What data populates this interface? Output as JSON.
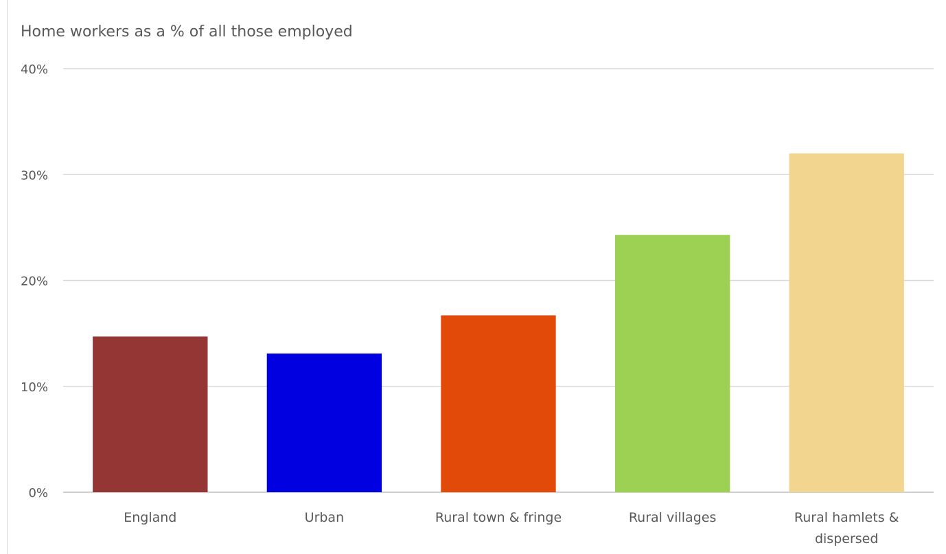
{
  "chart_data": {
    "type": "bar",
    "title": "Home workers as a % of all those employed",
    "categories": [
      "England",
      "Urban",
      "Rural town & fringe",
      "Rural villages",
      "Rural hamlets & dispersed"
    ],
    "category_lines": [
      [
        "England"
      ],
      [
        "Urban"
      ],
      [
        "Rural town & fringe"
      ],
      [
        "Rural villages"
      ],
      [
        "Rural hamlets &",
        "dispersed"
      ]
    ],
    "values": [
      14.7,
      13.1,
      16.7,
      24.3,
      32.0
    ],
    "colors": [
      "#943634",
      "#0000e0",
      "#e24a0a",
      "#9dd153",
      "#f2d690"
    ],
    "ylim": [
      0,
      40
    ],
    "yticks": [
      0,
      10,
      20,
      30,
      40
    ],
    "ytick_labels": [
      "0%",
      "10%",
      "20%",
      "30%",
      "40%"
    ],
    "grid": true,
    "xlabel": "",
    "ylabel": ""
  }
}
